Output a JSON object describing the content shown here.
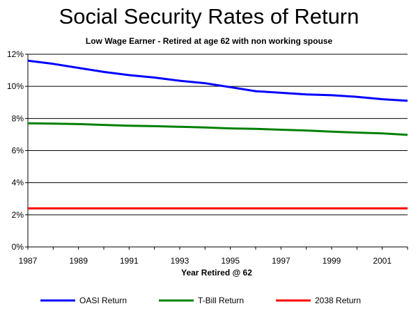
{
  "chart_data": {
    "type": "line",
    "title": "Social Security Rates of Return",
    "subtitle": "Low Wage Earner - Retired at age 62 with non working spouse",
    "xlabel": "Year Retired @ 62",
    "ylabel": "",
    "xlim": [
      1987,
      2002
    ],
    "ylim": [
      0,
      12
    ],
    "x_tick_labels": [
      "1987",
      "1989",
      "1991",
      "1993",
      "1995",
      "1997",
      "1999",
      "2001"
    ],
    "x_ticks": [
      1987,
      1989,
      1991,
      1993,
      1995,
      1997,
      1999,
      2001
    ],
    "y_tick_labels": [
      "0%",
      "2%",
      "4%",
      "6%",
      "8%",
      "10%",
      "12%"
    ],
    "y_ticks": [
      0,
      2,
      4,
      6,
      8,
      10,
      12
    ],
    "grid": "horizontal",
    "legend_position": "bottom",
    "x": [
      1987,
      1988,
      1989,
      1990,
      1991,
      1992,
      1993,
      1994,
      1995,
      1996,
      1997,
      1998,
      1999,
      2000,
      2001,
      2002
    ],
    "series": [
      {
        "name": "OASI Return",
        "color": "#0000ff",
        "values": [
          11.6,
          11.4,
          11.15,
          10.9,
          10.7,
          10.55,
          10.35,
          10.2,
          9.95,
          9.7,
          9.6,
          9.5,
          9.45,
          9.35,
          9.2,
          9.1
        ]
      },
      {
        "name": "T-Bill Return",
        "color": "#008000",
        "values": [
          7.7,
          7.68,
          7.65,
          7.6,
          7.55,
          7.52,
          7.48,
          7.44,
          7.38,
          7.35,
          7.3,
          7.25,
          7.18,
          7.12,
          7.07,
          6.98
        ]
      },
      {
        "name": "2038 Return",
        "color": "#ff0000",
        "values": [
          2.4,
          2.4,
          2.4,
          2.4,
          2.4,
          2.4,
          2.4,
          2.4,
          2.4,
          2.4,
          2.4,
          2.4,
          2.4,
          2.4,
          2.4,
          2.4
        ]
      }
    ]
  }
}
